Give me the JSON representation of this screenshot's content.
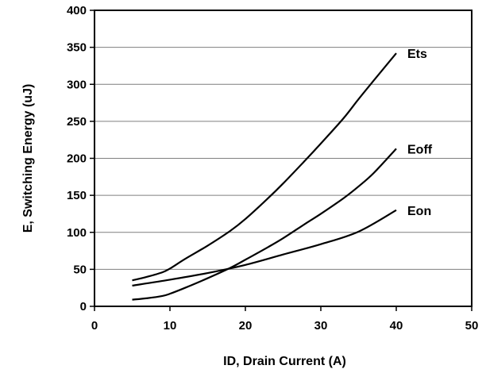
{
  "chart_data": {
    "type": "line",
    "xlabel": "ID, Drain Current (A)",
    "ylabel": "E, Switching Energy (uJ)",
    "xlim": [
      0,
      50
    ],
    "ylim": [
      0,
      400
    ],
    "xticks": [
      0,
      10,
      20,
      30,
      40,
      50
    ],
    "yticks": [
      0,
      50,
      100,
      150,
      200,
      250,
      300,
      350,
      400
    ],
    "grid": "horizontal",
    "series": [
      {
        "name": "Ets",
        "x": [
          5,
          7,
          9,
          10,
          12,
          15,
          18,
          20,
          23,
          25,
          28,
          30,
          33,
          35,
          37,
          40
        ],
        "y": [
          35,
          40,
          46,
          51,
          64,
          82,
          102,
          118,
          146,
          166,
          198,
          220,
          254,
          280,
          305,
          342
        ]
      },
      {
        "name": "Eoff",
        "x": [
          5,
          7,
          9,
          10,
          12,
          15,
          18,
          20,
          23,
          25,
          28,
          30,
          33,
          35,
          37,
          40
        ],
        "y": [
          9,
          11,
          14,
          17,
          25,
          38,
          52,
          63,
          80,
          92,
          112,
          125,
          146,
          162,
          180,
          213
        ]
      },
      {
        "name": "Eon",
        "x": [
          5,
          10,
          15,
          20,
          25,
          30,
          35,
          40
        ],
        "y": [
          28,
          36,
          45,
          56,
          70,
          84,
          101,
          130
        ]
      }
    ]
  }
}
